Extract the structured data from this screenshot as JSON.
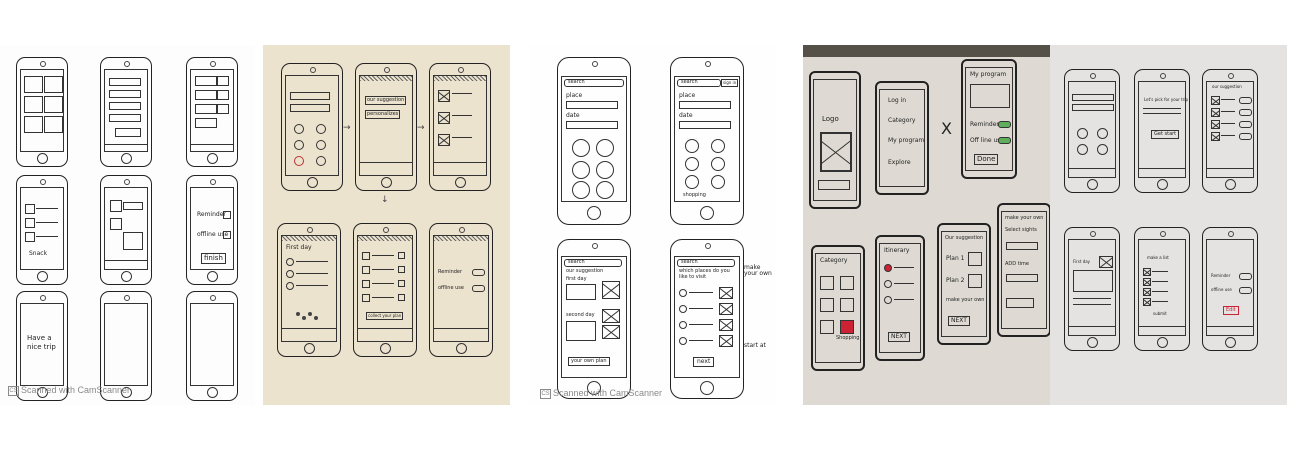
{
  "panel1": {
    "reminder_label": "Reminder",
    "offline_label": "offline use",
    "finish_label": "finish",
    "card_text": "Have a nice trip",
    "snack_label": "Snack",
    "watermark": "Scanned with CamScanner"
  },
  "panel2": {
    "first_day": "First day",
    "personalizes": "personalizes",
    "our_suggestion": "our suggestion",
    "reminder": "Reminder",
    "offline_use": "offline use",
    "collect_your_plan": "collect your plan"
  },
  "panel3": {
    "search_1": "search",
    "search_2": "search",
    "sign_in": "sign in",
    "place_1": "place",
    "date_1": "date",
    "place_2": "place",
    "date_2": "date",
    "shopping": "shopping",
    "search_3": "search",
    "our_suggestion": "our suggestion",
    "first_day": "first day",
    "second_day": "second day",
    "your_own_plan": "your own plan",
    "search_4": "search",
    "which_places": "which places do you like to visit",
    "next": "next",
    "make_your_own": "make your own",
    "start_at": "start at",
    "watermark": "Scanned with CamScanner"
  },
  "panel4": {
    "logo": "Logo",
    "log_in": "Log in",
    "category_1": "Category",
    "my_program_1": "My program",
    "explore": "Explore",
    "my_program_2": "My program",
    "reminder": "Reminder",
    "offline_use": "Off line use",
    "done": "Done",
    "category_2": "Category",
    "shopping": "Shopping",
    "itinerary": "Itinerary",
    "our_suggestion": "Our suggestion",
    "plan_1": "Plan 1",
    "plan_2": "Plan 2",
    "make_your_own_1": "make your own",
    "make_your_own_2": "make your own",
    "select_sights": "Select sights",
    "add_time": "ADD time",
    "next_1": "NEXT",
    "next_2": "NEXT",
    "x_mark": "X"
  },
  "panel5": {
    "lets_pick": "Let's pick for your trip",
    "get_start": "Get start",
    "our_suggestion": "our suggestion",
    "first_day": "First day",
    "make_a_list": "make a list",
    "reminder": "Reminder",
    "offline_use": "offline use",
    "edit": "Edit",
    "submit": "submit"
  }
}
